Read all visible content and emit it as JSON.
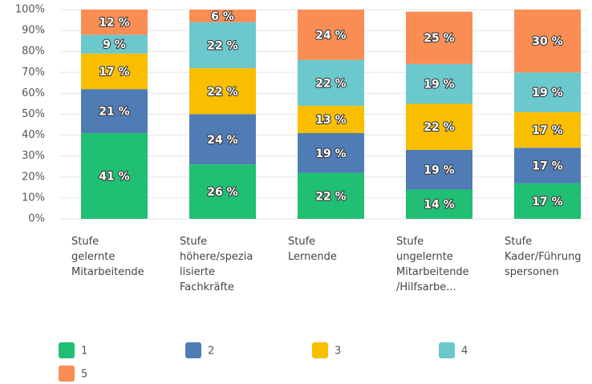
{
  "chart_data": {
    "type": "stacked_bar",
    "categories": [
      "Stufe\ngelernte\nMitarbeitende",
      "Stufe\nhöhere/spezia\nlisierte\nFachkräfte",
      "Stufe\nLernende",
      "Stufe\nungelernte\nMitarbeitende\n/Hilfsarbe...",
      "Stufe\nKader/Führung\nspersonen"
    ],
    "series": [
      {
        "name": "1",
        "color": "#21bf73",
        "values": [
          41,
          26,
          22,
          14,
          17
        ],
        "value_labels": [
          "41 %",
          "26 %",
          "22 %",
          "14 %",
          "17 %"
        ]
      },
      {
        "name": "2",
        "color": "#507cb6",
        "values": [
          21,
          24,
          19,
          19,
          17
        ],
        "value_labels": [
          "21 %",
          "24 %",
          "19 %",
          "19 %",
          "17 %"
        ]
      },
      {
        "name": "3",
        "color": "#f9be00",
        "values": [
          17,
          22,
          13,
          22,
          17
        ],
        "value_labels": [
          "17 %",
          "22 %",
          "13 %",
          "22 %",
          "17 %"
        ]
      },
      {
        "name": "4",
        "color": "#6bc8cd",
        "values": [
          9,
          22,
          22,
          19,
          19
        ],
        "value_labels": [
          "9 %",
          "22 %",
          "22 %",
          "19 %",
          "19 %"
        ]
      },
      {
        "name": "5",
        "color": "#f98d54",
        "values": [
          12,
          6,
          24,
          25,
          30
        ],
        "value_labels": [
          "12 %",
          "6 %",
          "24 %",
          "25 %",
          "30 %"
        ]
      }
    ],
    "ylim": [
      0,
      100
    ],
    "yticks": [
      {
        "value": 0,
        "label": "0%"
      },
      {
        "value": 10,
        "label": "10%"
      },
      {
        "value": 20,
        "label": "20%"
      },
      {
        "value": 30,
        "label": "30%"
      },
      {
        "value": 40,
        "label": "40%"
      },
      {
        "value": 50,
        "label": "50%"
      },
      {
        "value": 60,
        "label": "60%"
      },
      {
        "value": 70,
        "label": "70%"
      },
      {
        "value": 80,
        "label": "80%"
      },
      {
        "value": 90,
        "label": "90%"
      },
      {
        "value": 100,
        "label": "100%"
      }
    ],
    "grid": true
  }
}
